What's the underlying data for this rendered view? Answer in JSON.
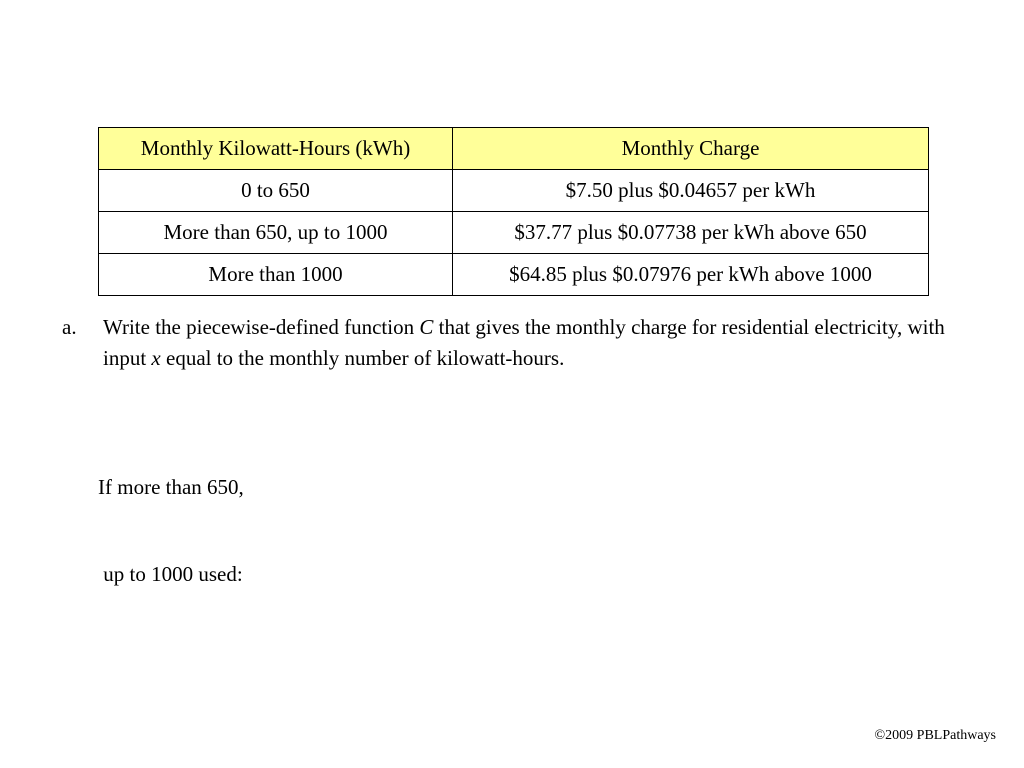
{
  "table": {
    "headers": [
      "Monthly Kilowatt-Hours (kWh)",
      "Monthly Charge"
    ],
    "rows": [
      [
        "0 to 650",
        "$7.50 plus $0.04657 per kWh"
      ],
      [
        "More than 650, up to 1000",
        "$37.77 plus $0.07738 per kWh above 650"
      ],
      [
        "More than 1000",
        "$64.85 plus $0.07976 per kWh above 1000"
      ]
    ]
  },
  "question": {
    "marker": "a.",
    "text_part1": "Write the piecewise-defined function ",
    "function_name": "C",
    "text_part2": " that gives the monthly charge for residential electricity, with input ",
    "variable_name": "x",
    "text_part3": " equal to the monthly number of kilowatt-hours."
  },
  "case_label": {
    "line1": "If more than 650,",
    "line2": " up to 1000 used:"
  },
  "footer": {
    "copyright": "©2009 PBLPathways"
  }
}
